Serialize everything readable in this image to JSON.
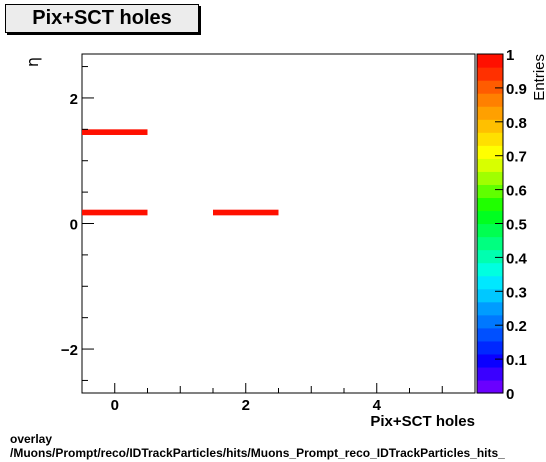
{
  "title": "Pix+SCT holes",
  "footer": {
    "line1": "overlay",
    "line2": "/Muons/Prompt/reco/IDTrackParticles/hits/Muons_Prompt_reco_IDTrackParticles_hits_"
  },
  "chart_data": {
    "type": "heatmap",
    "xlabel": "Pix+SCT holes",
    "ylabel": "η",
    "zlabel": "Entries",
    "xlim": [
      -0.5,
      5.5
    ],
    "ylim": [
      -2.7,
      2.7
    ],
    "zlim": [
      0,
      1
    ],
    "x_ticks": [
      0,
      2,
      4
    ],
    "y_ticks": [
      -2,
      0,
      2
    ],
    "z_ticks": [
      "0",
      "0.1",
      "0.2",
      "0.3",
      "0.4",
      "0.5",
      "0.6",
      "0.7",
      "0.8",
      "0.9",
      "1"
    ],
    "grid": false,
    "cells": [
      {
        "x": [
          -0.5,
          0.5
        ],
        "y": [
          1.41,
          1.5
        ],
        "value": 1
      },
      {
        "x": [
          -0.5,
          0.5
        ],
        "y": [
          0.13,
          0.22
        ],
        "value": 1
      },
      {
        "x": [
          1.5,
          2.5
        ],
        "y": [
          0.13,
          0.22
        ],
        "value": 1
      }
    ],
    "palette": [
      "#6a00ff",
      "#3a00ff",
      "#0a00ff",
      "#0028ff",
      "#0050ff",
      "#0078ff",
      "#009cff",
      "#00c8ff",
      "#00e8ff",
      "#00ffe0",
      "#00ffb0",
      "#00ff80",
      "#00ff50",
      "#00ff20",
      "#20ff00",
      "#60ff00",
      "#a0ff00",
      "#d8ff00",
      "#ffff00",
      "#ffe000",
      "#ffc000",
      "#ffa000",
      "#ff8000",
      "#ff5c00",
      "#ff3000",
      "#ff1000"
    ]
  }
}
